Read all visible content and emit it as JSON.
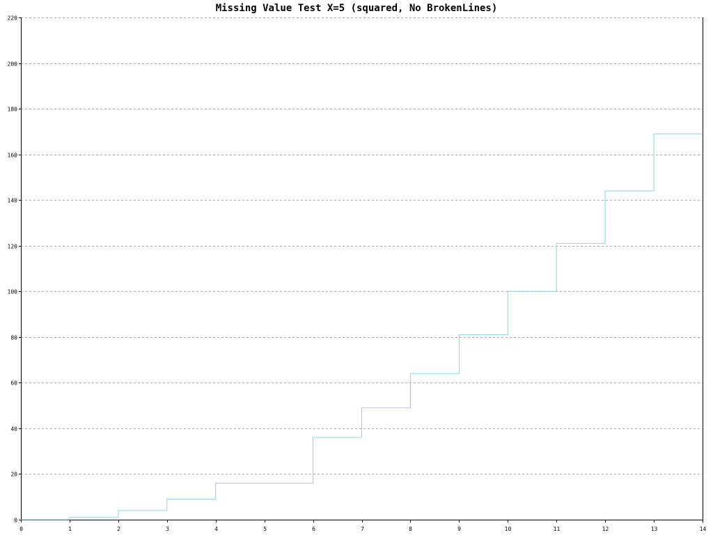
{
  "chart_data": {
    "type": "line",
    "title": "Missing Value Test X=5 (squared, No BrokenLines)",
    "xlabel": "",
    "ylabel": "",
    "line_style": "step",
    "x": [
      0,
      1,
      2,
      3,
      4,
      5,
      6,
      7,
      8,
      9,
      10,
      11,
      12,
      13,
      14
    ],
    "series": [
      {
        "values": [
          0,
          1,
          4,
          9,
          16,
          null,
          36,
          49,
          64,
          81,
          100,
          121,
          144,
          169,
          null
        ]
      }
    ],
    "xlim": [
      0,
      14
    ],
    "ylim": [
      0,
      220
    ],
    "x_ticks": [
      0,
      1,
      2,
      3,
      4,
      5,
      6,
      7,
      8,
      9,
      10,
      11,
      12,
      13,
      14
    ],
    "y_ticks": [
      0,
      20,
      40,
      60,
      80,
      100,
      120,
      140,
      160,
      180,
      200,
      220
    ],
    "grid": "horizontal dashed",
    "legend": "none",
    "line_color": "#8fd3e0",
    "grid_color": "#aaaaaa",
    "axis_color": "#000000"
  }
}
